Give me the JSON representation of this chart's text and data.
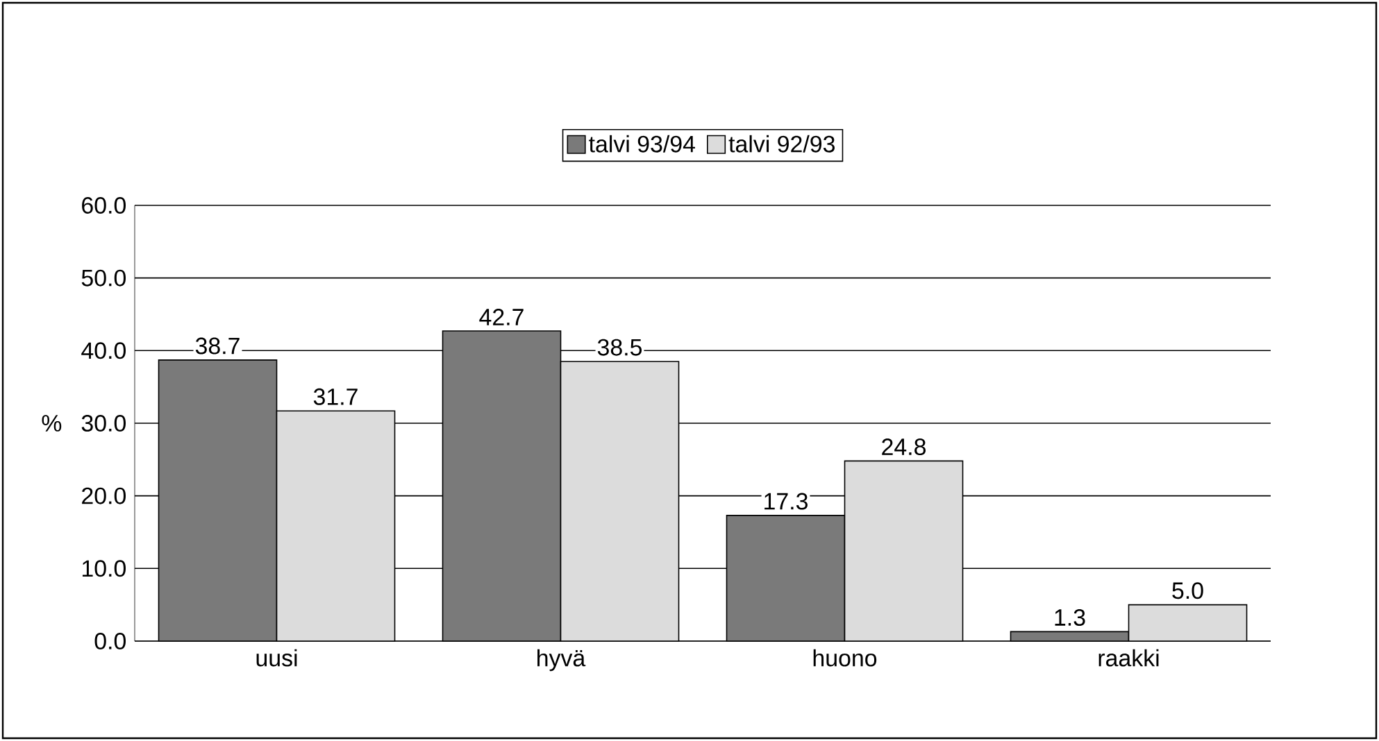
{
  "chart_data": {
    "type": "bar",
    "categories": [
      "uusi",
      "hyvä",
      "huono",
      "raakki"
    ],
    "series": [
      {
        "name": "talvi 93/94",
        "color": "#7a7a7a",
        "values": [
          38.7,
          42.7,
          17.3,
          1.3
        ],
        "value_labels": [
          "38.7",
          "42.7",
          "17.3",
          "1.3"
        ]
      },
      {
        "name": "talvi 92/93",
        "color": "#dcdcdc",
        "values": [
          31.7,
          38.5,
          24.8,
          5.0
        ],
        "value_labels": [
          "31.7",
          "38.5",
          "24.8",
          "5.0"
        ]
      }
    ],
    "ylabel": "%",
    "ylim": [
      0,
      60
    ],
    "yticks": [
      {
        "value": 0,
        "label": "0.0"
      },
      {
        "value": 10,
        "label": "10.0"
      },
      {
        "value": 20,
        "label": "20.0"
      },
      {
        "value": 30,
        "label": "30.0"
      },
      {
        "value": 40,
        "label": "40.0"
      },
      {
        "value": 50,
        "label": "50.0"
      },
      {
        "value": 60,
        "label": "60.0"
      }
    ],
    "grid": "y",
    "legend": "top"
  }
}
